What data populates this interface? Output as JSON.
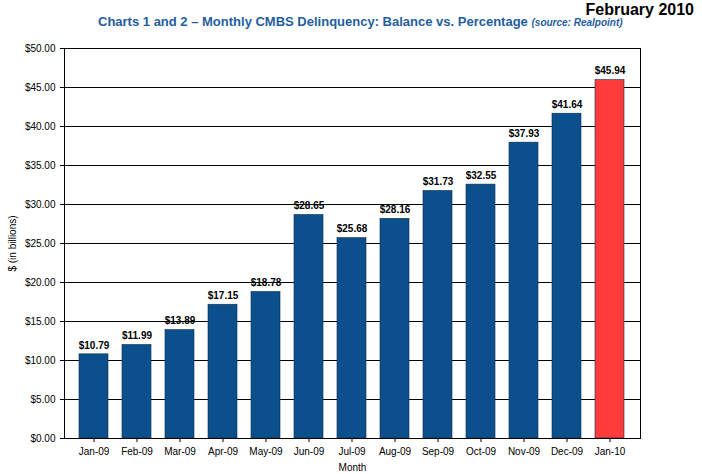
{
  "chart_data": {
    "type": "bar",
    "title": "Charts 1 and 2 – Monthly CMBS Delinquency: Balance vs. Percentage",
    "subtitle": "(source: Realpoint)",
    "annotations": [
      "February 2010"
    ],
    "xlabel": "Month",
    "ylabel": "$ (in billions)",
    "categories": [
      "Jan-09",
      "Feb-09",
      "Mar-09",
      "Apr-09",
      "May-09",
      "Jun-09",
      "Jul-09",
      "Aug-09",
      "Sep-09",
      "Oct-09",
      "Nov-09",
      "Dec-09",
      "Jan-10"
    ],
    "values": [
      10.79,
      11.99,
      13.89,
      17.15,
      18.78,
      28.65,
      25.68,
      28.16,
      31.73,
      32.55,
      37.93,
      41.64,
      45.94
    ],
    "value_labels": [
      "$10.79",
      "$11.99",
      "$13.89",
      "$17.15",
      "$18.78",
      "$28.65",
      "$25.68",
      "$28.16",
      "$31.73",
      "$32.55",
      "$37.93",
      "$41.64",
      "$45.94"
    ],
    "colors": [
      "#0b4f8c",
      "#0b4f8c",
      "#0b4f8c",
      "#0b4f8c",
      "#0b4f8c",
      "#0b4f8c",
      "#0b4f8c",
      "#0b4f8c",
      "#0b4f8c",
      "#0b4f8c",
      "#0b4f8c",
      "#0b4f8c",
      "#ff3b3b"
    ],
    "ylim": [
      0,
      50
    ],
    "yticks": [
      {
        "value": 0,
        "label": "$0.00"
      },
      {
        "value": 5,
        "label": "$5.00"
      },
      {
        "value": 10,
        "label": "$10.00"
      },
      {
        "value": 15,
        "label": "$15.00"
      },
      {
        "value": 20,
        "label": "$20.00"
      },
      {
        "value": 25,
        "label": "$25.00"
      },
      {
        "value": 30,
        "label": "$30.00"
      },
      {
        "value": 35,
        "label": "$35.00"
      },
      {
        "value": 40,
        "label": "$40.00"
      },
      {
        "value": 45,
        "label": "$45.00"
      },
      {
        "value": 50,
        "label": "$50.00"
      }
    ],
    "grid": true,
    "data_labels": true
  }
}
